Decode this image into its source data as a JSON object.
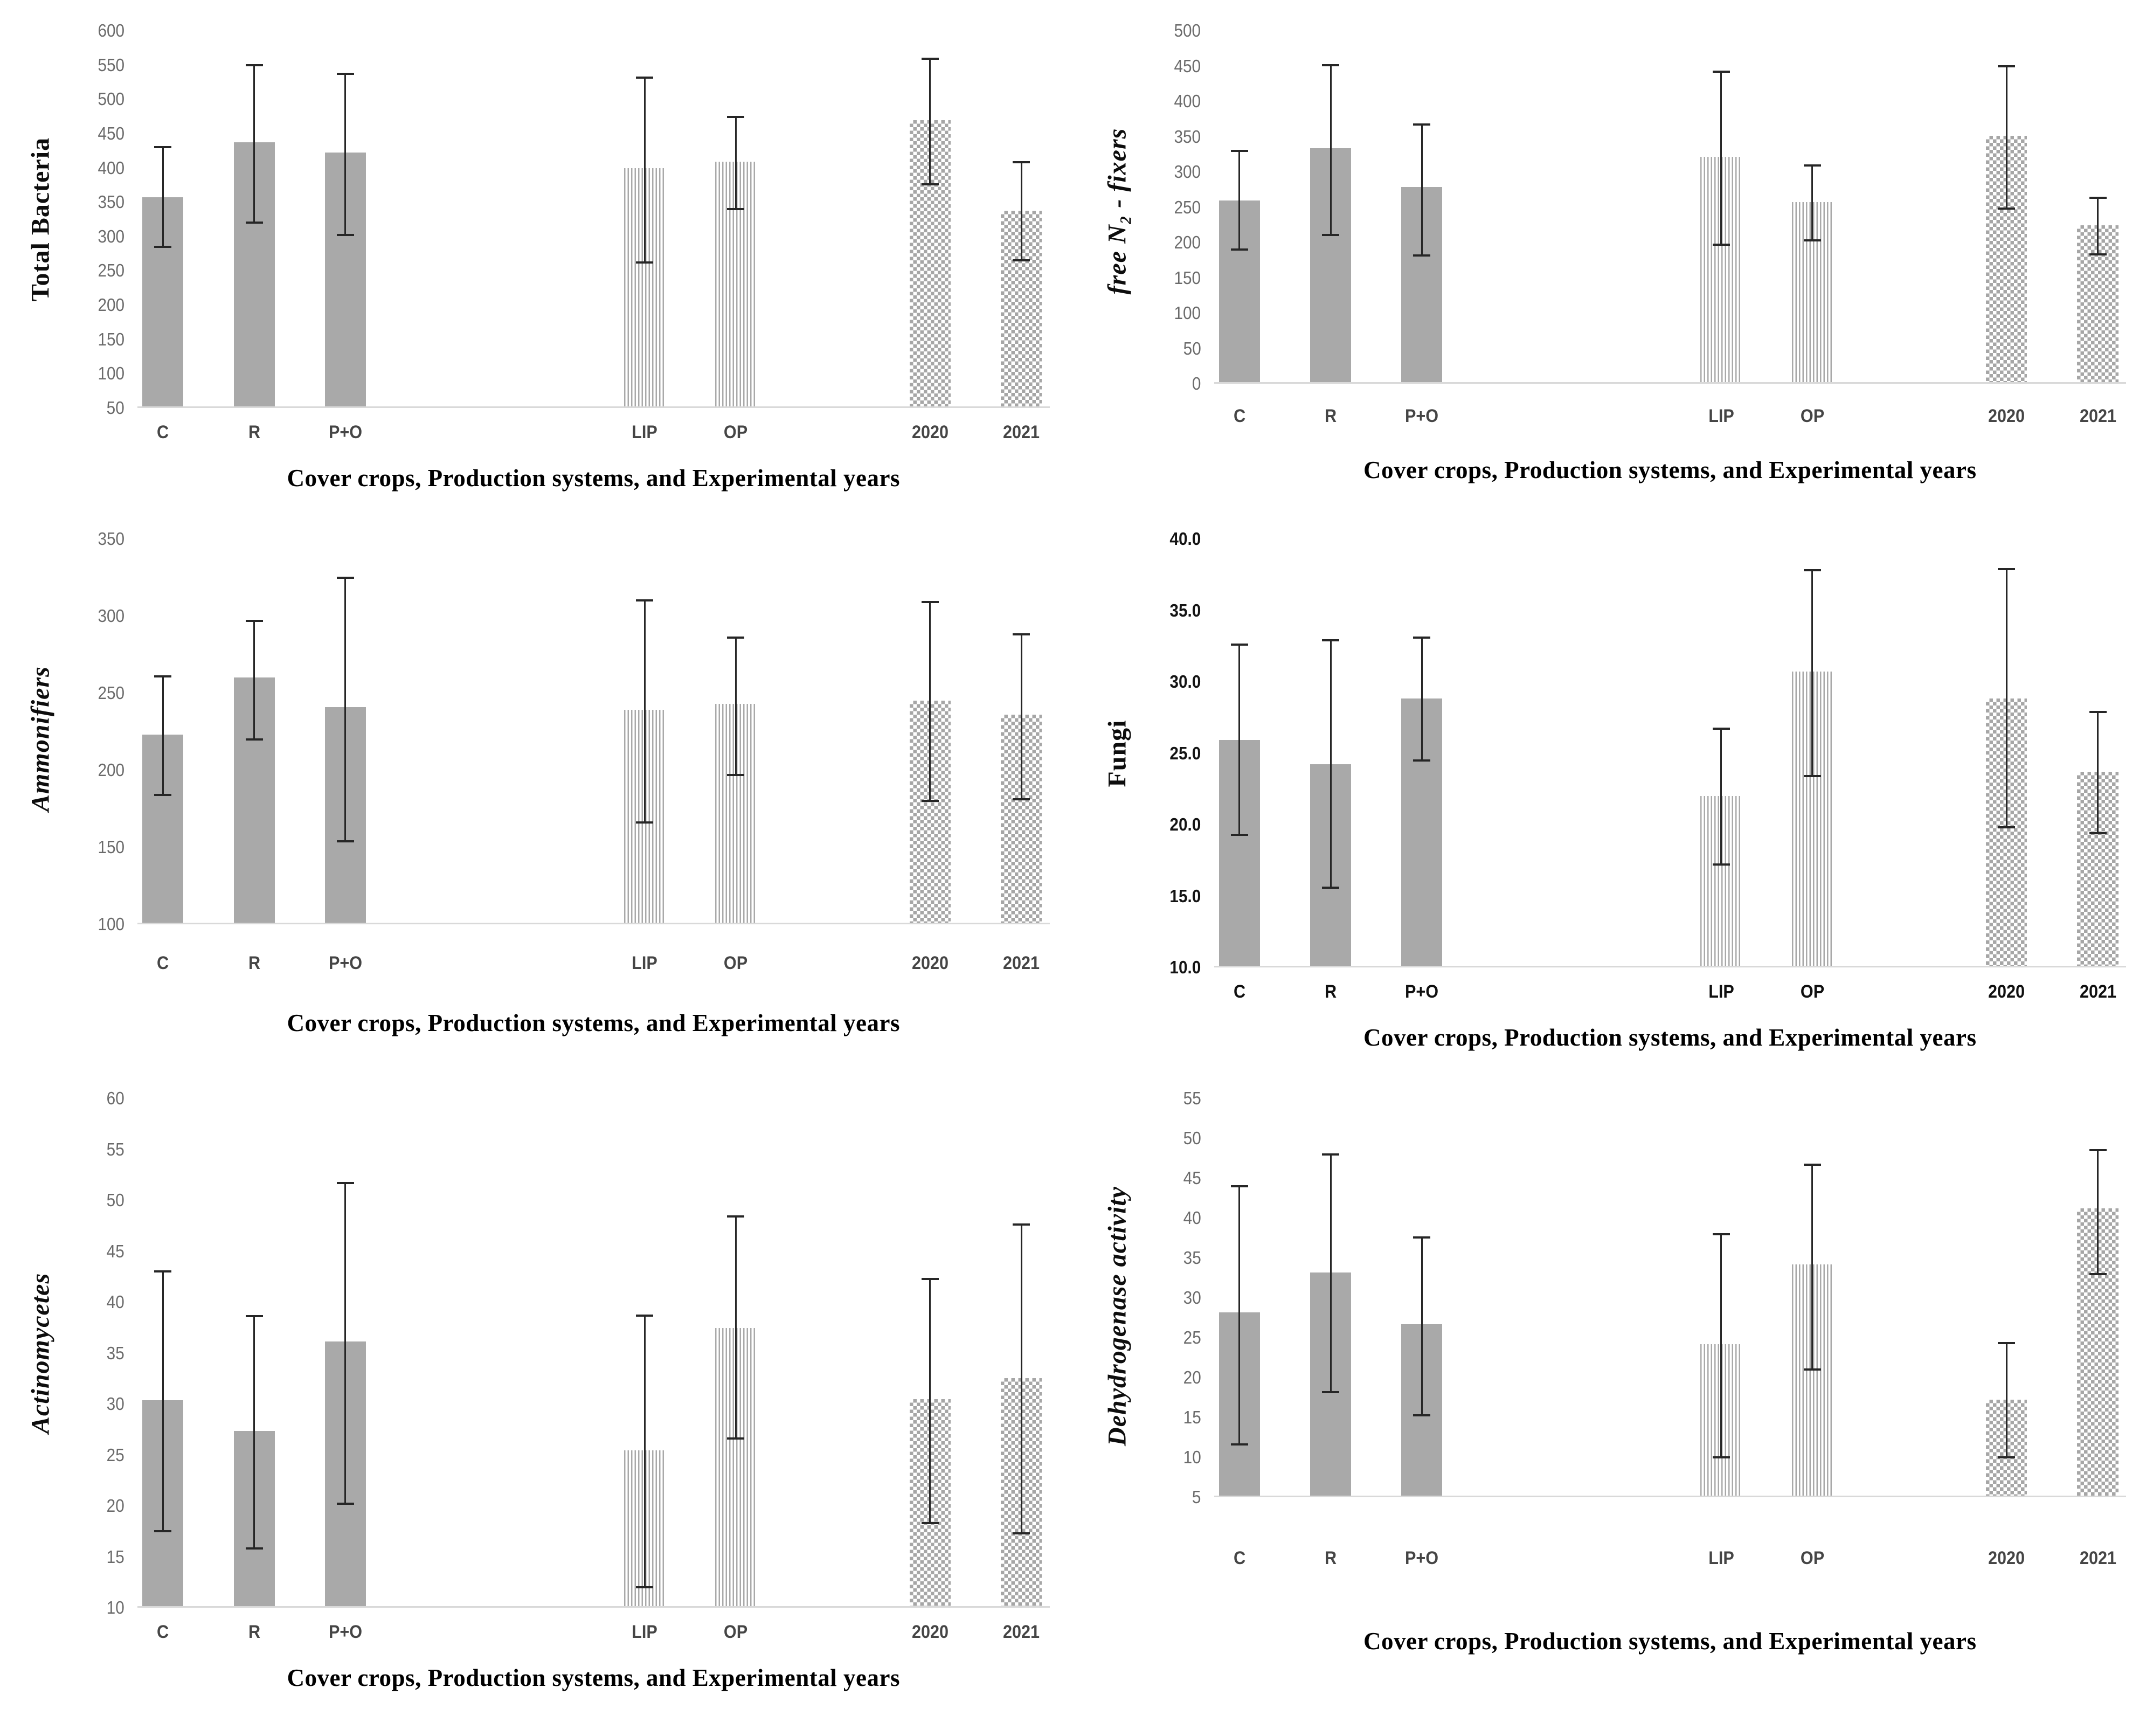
{
  "figure": {
    "description_colors": {
      "bar_solid": "#a9a9a9",
      "bar_pattern": "#a6a6a6",
      "error_bar": "#262626",
      "axis_line": "#d9d9d9",
      "tick_text": "#6b6b6b",
      "category_text": "#454545",
      "title_text": "#000000"
    }
  },
  "chart_data": [
    {
      "type": "bar",
      "ylabel": "Total Bacteria",
      "ylabel_italic": false,
      "xlabel": "Cover crops, Production systems, and Experimental years",
      "categories": [
        "C",
        "R",
        "P+O",
        "LIP",
        "OP",
        "2020",
        "2021"
      ],
      "group_styles": [
        "solid",
        "solid",
        "solid",
        "stripes",
        "stripes",
        "checker",
        "checker"
      ],
      "values": [
        355,
        435,
        420,
        397,
        407,
        467,
        335
      ],
      "err_low": [
        285,
        320,
        302,
        262,
        340,
        376,
        265
      ],
      "err_high": [
        430,
        550,
        537,
        532,
        474,
        559,
        408
      ],
      "ylim": [
        50,
        600
      ],
      "ystep": 50,
      "tick_decimals": 0,
      "bold_ticks": false,
      "grid": false,
      "legend": "none"
    },
    {
      "type": "bar",
      "ylabel": "free N₂ - fixers",
      "ylabel_italic": true,
      "xlabel": "Cover crops, Production systems, and Experimental years",
      "categories": [
        "C",
        "R",
        "P+O",
        "LIP",
        "OP",
        "2020",
        "2021"
      ],
      "group_styles": [
        "solid",
        "solid",
        "solid",
        "stripes",
        "stripes",
        "checker",
        "checker"
      ],
      "values": [
        257,
        331,
        276,
        319,
        255,
        349,
        222
      ],
      "err_low": [
        190,
        211,
        182,
        197,
        203,
        248,
        183
      ],
      "err_high": [
        330,
        451,
        367,
        442,
        309,
        450,
        263
      ],
      "ylim": [
        0,
        500
      ],
      "ystep": 50,
      "tick_decimals": 0,
      "bold_ticks": false,
      "grid": false,
      "legend": "none"
    },
    {
      "type": "bar",
      "ylabel": "Ammonifiers",
      "ylabel_italic": true,
      "xlabel": "Cover crops, Production systems, and Experimental years",
      "categories": [
        "C",
        "R",
        "P+O",
        "LIP",
        "OP",
        "2020",
        "2021"
      ],
      "group_styles": [
        "solid",
        "solid",
        "solid",
        "stripes",
        "stripes",
        "checker",
        "checker"
      ],
      "values": [
        222,
        259,
        240,
        238,
        242,
        244,
        235
      ],
      "err_low": [
        184,
        220,
        154,
        166,
        197,
        180,
        181
      ],
      "err_high": [
        261,
        297,
        325,
        310,
        286,
        309,
        288
      ],
      "ylim": [
        100,
        350
      ],
      "ystep": 50,
      "tick_decimals": 0,
      "bold_ticks": false,
      "grid": false,
      "legend": "none"
    },
    {
      "type": "bar",
      "ylabel": "Fungi",
      "ylabel_italic": false,
      "xlabel": "Cover crops, Production systems, and Experimental years",
      "categories": [
        "C",
        "R",
        "P+O",
        "LIP",
        "OP",
        "2020",
        "2021"
      ],
      "group_styles": [
        "solid",
        "solid",
        "solid",
        "stripes",
        "stripes",
        "checker",
        "checker"
      ],
      "values": [
        25.8,
        24.1,
        28.7,
        21.9,
        30.6,
        28.7,
        23.6
      ],
      "err_low": [
        19.3,
        15.6,
        24.5,
        17.2,
        23.4,
        19.8,
        19.4
      ],
      "err_high": [
        32.6,
        32.9,
        33.1,
        26.7,
        37.8,
        37.9,
        27.9
      ],
      "ylim": [
        10,
        40
      ],
      "ystep": 5,
      "tick_decimals": 1,
      "bold_ticks": true,
      "grid": false,
      "legend": "none"
    },
    {
      "type": "bar",
      "ylabel": "Actinomycetes",
      "ylabel_italic": true,
      "xlabel": "Cover crops, Production systems, and Experimental years",
      "categories": [
        "C",
        "R",
        "P+O",
        "LIP",
        "OP",
        "2020",
        "2021"
      ],
      "group_styles": [
        "solid",
        "solid",
        "solid",
        "stripes",
        "stripes",
        "checker",
        "checker"
      ],
      "values": [
        30.2,
        27.2,
        36.0,
        25.3,
        37.3,
        30.3,
        32.4
      ],
      "err_low": [
        17.5,
        15.8,
        20.2,
        12.0,
        26.6,
        18.3,
        17.3
      ],
      "err_high": [
        43.0,
        38.6,
        51.7,
        38.7,
        48.4,
        42.3,
        47.6
      ],
      "ylim": [
        10,
        60
      ],
      "ystep": 5,
      "tick_decimals": 0,
      "bold_ticks": false,
      "grid": false,
      "legend": "none"
    },
    {
      "type": "bar",
      "ylabel": "Dehydrogenase activity",
      "ylabel_italic": true,
      "xlabel": "Cover crops, Production systems, and Experimental years",
      "categories": [
        "C",
        "R",
        "P+O",
        "LIP",
        "OP",
        "2020",
        "2021"
      ],
      "group_styles": [
        "solid",
        "solid",
        "solid",
        "stripes",
        "stripes",
        "checker",
        "checker"
      ],
      "values": [
        28.0,
        33.0,
        26.5,
        24.0,
        34.0,
        17.0,
        41.0
      ],
      "err_low": [
        11.6,
        18.2,
        15.3,
        10.0,
        21.0,
        10.0,
        33.0
      ],
      "err_high": [
        44.0,
        48.0,
        37.6,
        38.0,
        46.7,
        24.3,
        48.5
      ],
      "ylim": [
        5,
        55
      ],
      "ystep": 5,
      "tick_decimals": 0,
      "bold_ticks": false,
      "grid": false,
      "legend": "none"
    }
  ]
}
